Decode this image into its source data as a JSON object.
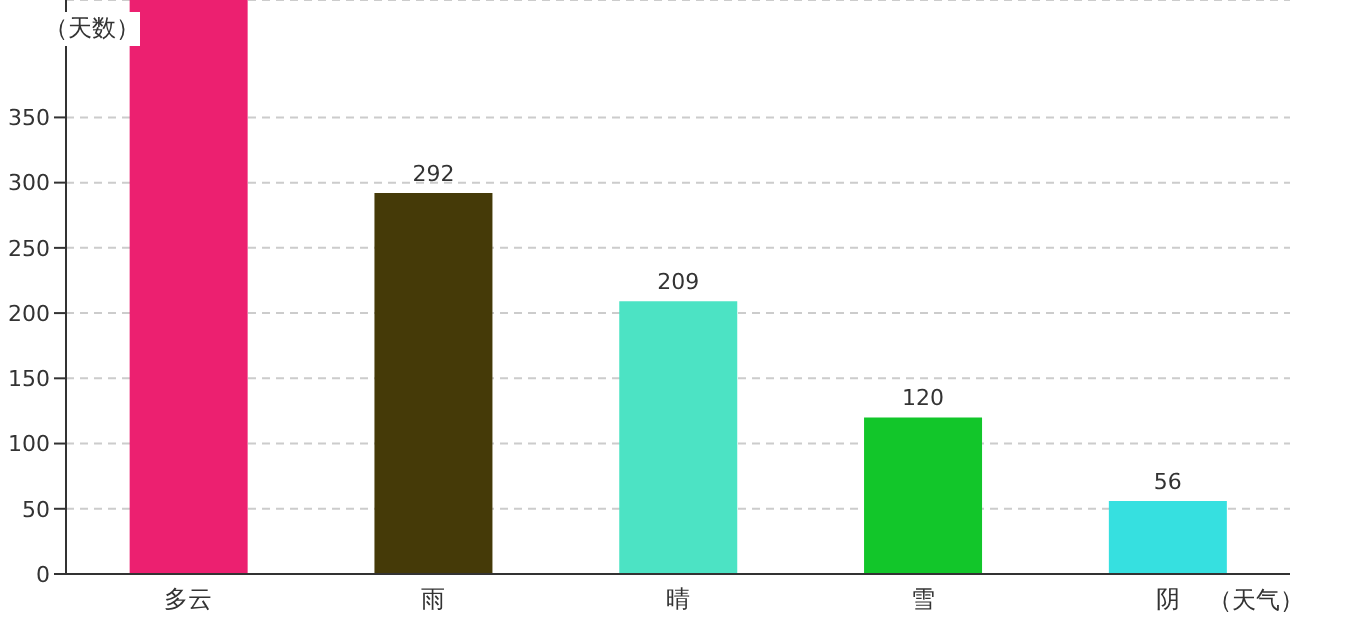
{
  "chart_data": {
    "type": "bar",
    "ylabel": "（天数）",
    "xlabel": "（天气）",
    "categories": [
      "多云",
      "雨",
      "晴",
      "雪",
      "阴"
    ],
    "values": [
      440,
      292,
      209,
      120,
      56
    ],
    "value_labels": [
      null,
      "292",
      "209",
      "120",
      "56"
    ],
    "colors": [
      "#ec2070",
      "#453a08",
      "#4ce3c4",
      "#12c62a",
      "#36e0e0"
    ],
    "ylim": [
      0,
      440
    ],
    "yticks": [
      0,
      50,
      100,
      150,
      200,
      250,
      300,
      350
    ],
    "grid": "y"
  }
}
